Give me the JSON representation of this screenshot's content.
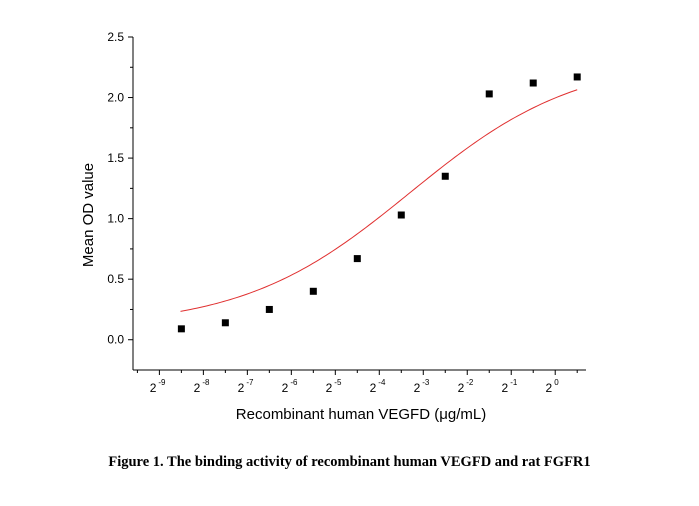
{
  "caption": "Figure 1. The binding activity of recombinant human VEGFD and rat FGFR1",
  "chart_data": {
    "type": "scatter",
    "xlabel": "Recombinant human VEGFD (μg/mL)",
    "ylabel": "Mean OD value",
    "x_scale": "log2",
    "xlim_exponent": [
      -9.6,
      0.7
    ],
    "ylim": [
      -0.25,
      2.5
    ],
    "y_ticks": [
      "0.0",
      "0.5",
      "1.0",
      "1.5",
      "2.0",
      "2.5"
    ],
    "x_ticks": [
      {
        "base": "2",
        "exp": "-9",
        "value": -9
      },
      {
        "base": "2",
        "exp": "-8",
        "value": -8
      },
      {
        "base": "2",
        "exp": "-7",
        "value": -7
      },
      {
        "base": "2",
        "exp": "-6",
        "value": -6
      },
      {
        "base": "2",
        "exp": "-5",
        "value": -5
      },
      {
        "base": "2",
        "exp": "-4",
        "value": -4
      },
      {
        "base": "2",
        "exp": "-3",
        "value": -3
      },
      {
        "base": "2",
        "exp": "-2",
        "value": -2
      },
      {
        "base": "2",
        "exp": "-1",
        "value": -1
      },
      {
        "base": "2",
        "exp": "0",
        "value": 0
      }
    ],
    "points": [
      {
        "x_exp": -8.5,
        "y": 0.09
      },
      {
        "x_exp": -7.5,
        "y": 0.14
      },
      {
        "x_exp": -6.5,
        "y": 0.25
      },
      {
        "x_exp": -5.5,
        "y": 0.4
      },
      {
        "x_exp": -4.5,
        "y": 0.67
      },
      {
        "x_exp": -3.5,
        "y": 1.03
      },
      {
        "x_exp": -2.5,
        "y": 1.35
      },
      {
        "x_exp": -1.5,
        "y": 2.03
      },
      {
        "x_exp": -0.5,
        "y": 2.12
      },
      {
        "x_exp": 0.5,
        "y": 2.17
      }
    ],
    "fit_curve": {
      "model": "4PL",
      "bottom": 0.1,
      "top": 2.33,
      "log2_ec50": -3.3,
      "hill": 0.76,
      "color": "#e03030"
    },
    "marker_color": "#000000"
  }
}
